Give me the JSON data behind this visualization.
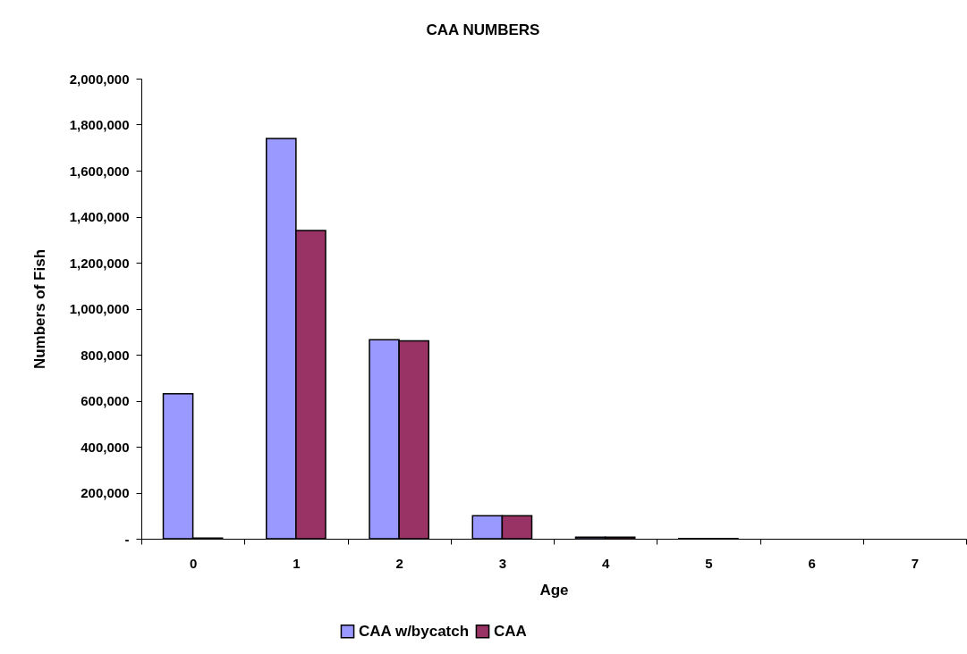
{
  "chart_data": {
    "type": "bar",
    "title": "CAA NUMBERS",
    "xlabel": "Age",
    "ylabel": "Numbers of Fish",
    "categories": [
      "0",
      "1",
      "2",
      "3",
      "4",
      "5",
      "6",
      "7"
    ],
    "series": [
      {
        "name": "CAA w/bycatch",
        "color": "#9999ff",
        "values": [
          630000,
          1740000,
          865000,
          100000,
          7000,
          1000,
          null,
          null
        ]
      },
      {
        "name": "CAA",
        "color": "#993366",
        "values": [
          3000,
          1340000,
          860000,
          100000,
          7000,
          1000,
          null,
          null
        ]
      }
    ],
    "ylim": [
      0,
      2000000
    ],
    "yticks": [
      {
        "value": 0,
        "label": "-"
      },
      {
        "value": 200000,
        "label": "200,000"
      },
      {
        "value": 400000,
        "label": "400,000"
      },
      {
        "value": 600000,
        "label": "600,000"
      },
      {
        "value": 800000,
        "label": "800,000"
      },
      {
        "value": 1000000,
        "label": "1,000,000"
      },
      {
        "value": 1200000,
        "label": "1,200,000"
      },
      {
        "value": 1400000,
        "label": "1,400,000"
      },
      {
        "value": 1600000,
        "label": "1,600,000"
      },
      {
        "value": 1800000,
        "label": "1,800,000"
      },
      {
        "value": 2000000,
        "label": "2,000,000"
      }
    ],
    "grid": false,
    "legend": "bottom"
  }
}
